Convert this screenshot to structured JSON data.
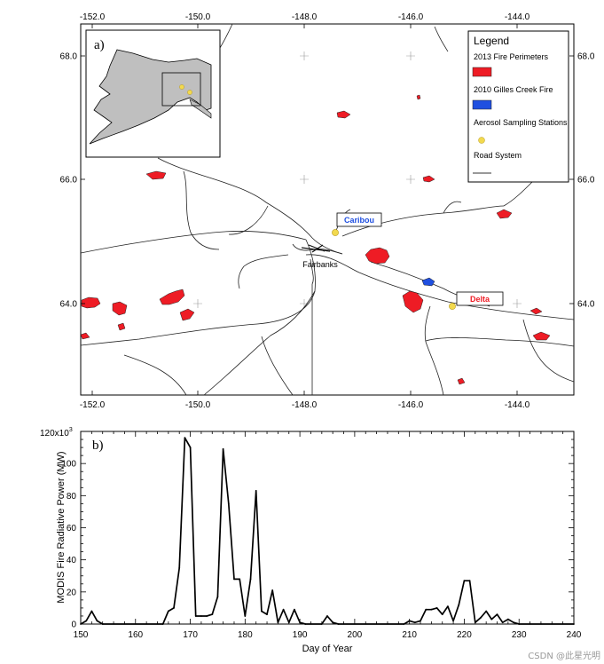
{
  "map": {
    "panel_label": "a)",
    "lon_ticks": [
      "-152.0",
      "-150.0",
      "-148.0",
      "-146.0",
      "-144.0"
    ],
    "lat_ticks": [
      "68.0",
      "66.0",
      "64.0"
    ],
    "legend": {
      "title": "Legend",
      "items": [
        {
          "label": "2013 Fire Perimeters",
          "color": "#ee1c25",
          "kind": "fill"
        },
        {
          "label": "2010 Gilles Creek Fire",
          "color": "#1f4fe0",
          "kind": "fill"
        },
        {
          "label": "Aerosol Sampling Stations",
          "color": "#f2d94e",
          "kind": "dot"
        },
        {
          "label": "Road System",
          "color": "#333333",
          "kind": "line"
        }
      ]
    },
    "places": {
      "caribou": {
        "label": "Caribou",
        "color": "#1f4fe0"
      },
      "delta": {
        "label": "Delta",
        "color": "#ee1c25"
      },
      "fairbanks": {
        "label": "Fairbanks"
      }
    }
  },
  "chart_data": {
    "type": "line",
    "panel_label": "b)",
    "xlabel": "Day of Year",
    "ylabel": "MODIS Fire Radiative Power (MW)",
    "xlim": [
      150,
      240
    ],
    "ylim": [
      0,
      120
    ],
    "y_scale_label": "120x10",
    "y_scale_exp": "3",
    "x_ticks": [
      150,
      160,
      170,
      180,
      190,
      200,
      210,
      220,
      230,
      240
    ],
    "y_ticks": [
      0,
      20,
      40,
      60,
      80,
      100
    ],
    "x": [
      150,
      151,
      152,
      153,
      154,
      165,
      166,
      167,
      168,
      169,
      170,
      171,
      172,
      173,
      174,
      175,
      176,
      177,
      178,
      179,
      180,
      181,
      182,
      183,
      184,
      185,
      186,
      187,
      188,
      189,
      190,
      191,
      194,
      195,
      196,
      197,
      209,
      210,
      211,
      212,
      213,
      214,
      215,
      216,
      217,
      218,
      219,
      220,
      221,
      222,
      223,
      224,
      225,
      226,
      227,
      228,
      229,
      230,
      240
    ],
    "y": [
      0,
      2,
      8,
      2,
      0,
      0,
      8,
      10,
      35,
      116,
      110,
      5,
      5,
      5,
      6,
      17,
      109,
      75,
      28,
      28,
      5,
      28,
      83,
      8,
      6,
      21,
      1,
      9,
      1,
      9,
      1,
      0,
      0,
      5,
      1,
      0,
      0,
      2,
      1,
      2,
      9,
      9,
      10,
      6,
      11,
      2,
      12,
      27,
      27,
      1,
      4,
      8,
      3,
      6,
      1,
      3,
      1,
      0,
      0
    ]
  },
  "watermark": "CSDN @此星光明"
}
